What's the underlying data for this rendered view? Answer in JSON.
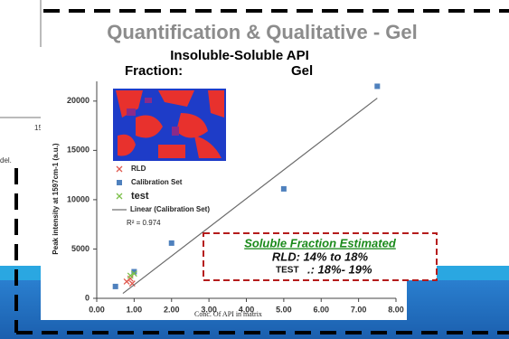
{
  "slide": {
    "corner_tick": "15",
    "corner_text": "del."
  },
  "chart_data": {
    "type": "scatter",
    "title": "Quantification & Qualitative - Gel",
    "subtitle": "Insoluble-Soluble API",
    "subtitle2": "Fraction:",
    "subtitle3": "Gel",
    "x_label": "Conc. Of API in matrix",
    "y_label": "Peak intensity at 1597cm-1 (a.u.)",
    "xlim": [
      0,
      8
    ],
    "ylim": [
      0,
      22000
    ],
    "xticks": [
      {
        "value": 0,
        "label": "0.00"
      },
      {
        "value": 1,
        "label": "1.00"
      },
      {
        "value": 2,
        "label": "2.00"
      },
      {
        "value": 3,
        "label": "3.00"
      },
      {
        "value": 4,
        "label": "4.00"
      },
      {
        "value": 5,
        "label": "5.00"
      },
      {
        "value": 6,
        "label": "6.00"
      },
      {
        "value": 7,
        "label": "7.00"
      },
      {
        "value": 8,
        "label": "8.00"
      }
    ],
    "yticks": [
      0,
      5000,
      10000,
      15000,
      20000
    ],
    "series": [
      {
        "name": "RLD",
        "color": "#e05a4f",
        "marker": "x",
        "x": [
          0.8,
          0.9,
          0.95
        ],
        "values": [
          1700,
          2000,
          1500
        ]
      },
      {
        "name": "Calibration Set",
        "color": "#4f81bd",
        "marker": "square",
        "x": [
          0.5,
          1.0,
          2.0,
          5.0,
          7.5
        ],
        "values": [
          1200,
          2700,
          5600,
          11100,
          21500
        ]
      },
      {
        "name": "test",
        "color": "#7cc04b",
        "marker": "x",
        "x": [
          0.9,
          1.0
        ],
        "values": [
          2300,
          2500
        ]
      },
      {
        "name": "Linear (Calibration Set)",
        "color": "#6a6a6a",
        "marker": "line",
        "x": [
          0.7,
          7.5
        ],
        "values": [
          500,
          20300
        ]
      }
    ],
    "r_squared": "R² = 0.974",
    "annotation": {
      "heading": "Soluble Fraction Estimated",
      "line1": "RLD: 14% to 18%",
      "line2_label": "TEST",
      "line2": ".: 18%- 19%"
    }
  }
}
